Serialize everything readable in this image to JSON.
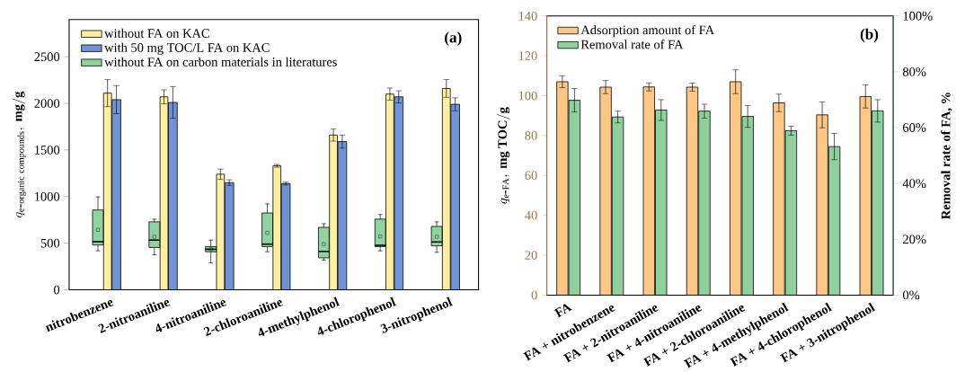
{
  "chart_data": [
    {
      "type": "bar",
      "ylabel": "q_{\\mathrm{e\\mbox{-}organic\\ compounds}},\\ \\mathbf{mg/g}",
      "categories": [
        "nitrobenzene",
        "2-nitroaniline",
        "4-nitroaniline",
        "2-chloroaniline",
        "4-methylphenol",
        "4-chlorophenol",
        "3-nitrophenol"
      ],
      "series": [
        {
          "name": "without FA on KAC",
          "color": "#fff0a0",
          "values": [
            2110,
            2070,
            1240,
            1330,
            1660,
            2100,
            2160
          ],
          "errors": [
            145,
            75,
            55,
            15,
            65,
            65,
            95
          ]
        },
        {
          "name": "with 50 mg TOC/L FA on KAC",
          "color": "#6f93d6",
          "values": [
            2040,
            2010,
            1150,
            1140,
            1590,
            2070,
            1990
          ],
          "errors": [
            150,
            170,
            30,
            15,
            70,
            65,
            70
          ]
        },
        {
          "name": "without FA on carbon materials in literatures",
          "type": "box",
          "color": "#8fd3a0",
          "boxes": [
            {
              "low": 418,
              "q1": 480,
              "median": 516,
              "q3": 856,
              "high": 997,
              "mean": 644
            },
            {
              "low": 376,
              "q1": 454,
              "median": 533,
              "q3": 729,
              "high": 758,
              "mean": 569
            },
            {
              "low": 288,
              "q1": 408,
              "median": 435,
              "q3": 464,
              "high": 533,
              "mean": 435
            },
            {
              "low": 408,
              "q1": 464,
              "median": 490,
              "q3": 824,
              "high": 922,
              "mean": 611
            },
            {
              "low": 320,
              "q1": 343,
              "median": 412,
              "q3": 670,
              "high": 709,
              "mean": 490
            },
            {
              "low": 418,
              "q1": 464,
              "median": 477,
              "q3": 758,
              "high": 807,
              "mean": 572
            },
            {
              "low": 402,
              "q1": 471,
              "median": 513,
              "q3": 680,
              "high": 729,
              "mean": 569
            }
          ]
        }
      ],
      "ylim": [
        0,
        2900
      ],
      "yticks": [
        0,
        500,
        1000,
        1500,
        2000,
        2500
      ],
      "legend": "top left",
      "annotations": [
        "(a)"
      ]
    },
    {
      "type": "bar",
      "ylabel": "q_{\\mathrm{e\\mbox{-}FA}},\\ \\mathbf{mg\\ TOC/g}",
      "y2label": "Removal rate of FA, %",
      "categories": [
        "FA",
        "FA + nitrobenzene",
        "FA + 2-nitroaniline",
        "FA + 4-nitroaniline",
        "FA + 2-chloroaniline",
        "FA + 4-methylphenol",
        "FA + 4-chlorophenol",
        "FA + 3-nitrophenol"
      ],
      "series": [
        {
          "name": "Adsorption amount of FA",
          "color": "#ffc785",
          "values": [
            107,
            104.3,
            104.4,
            104.3,
            107,
            96.4,
            90.4,
            99.6
          ],
          "errors": [
            3,
            3.3,
            2,
            2,
            6,
            4.4,
            6.5,
            5.8
          ]
        },
        {
          "name": "Removal rate of FA",
          "color": "#8fd19e",
          "axis": "y2",
          "values": [
            69.8,
            63.8,
            66.3,
            65.9,
            64.0,
            58.9,
            53.2,
            66.0
          ],
          "errors": [
            4.2,
            2.1,
            3.7,
            2.5,
            3.9,
            1.6,
            4.7,
            4.0
          ]
        }
      ],
      "ylim": [
        0,
        140
      ],
      "yticks": [
        0,
        20,
        40,
        60,
        80,
        100,
        120,
        140
      ],
      "y2lim": [
        0,
        100
      ],
      "y2ticks": [
        {
          "value": 0,
          "label": "0%"
        },
        {
          "value": 20,
          "label": "20%"
        },
        {
          "value": 40,
          "label": "40%"
        },
        {
          "value": 60,
          "label": "60%"
        },
        {
          "value": 80,
          "label": "80%"
        },
        {
          "value": 100,
          "label": "100%"
        }
      ],
      "legend": "top left",
      "annotations": [
        "(b)"
      ]
    }
  ]
}
